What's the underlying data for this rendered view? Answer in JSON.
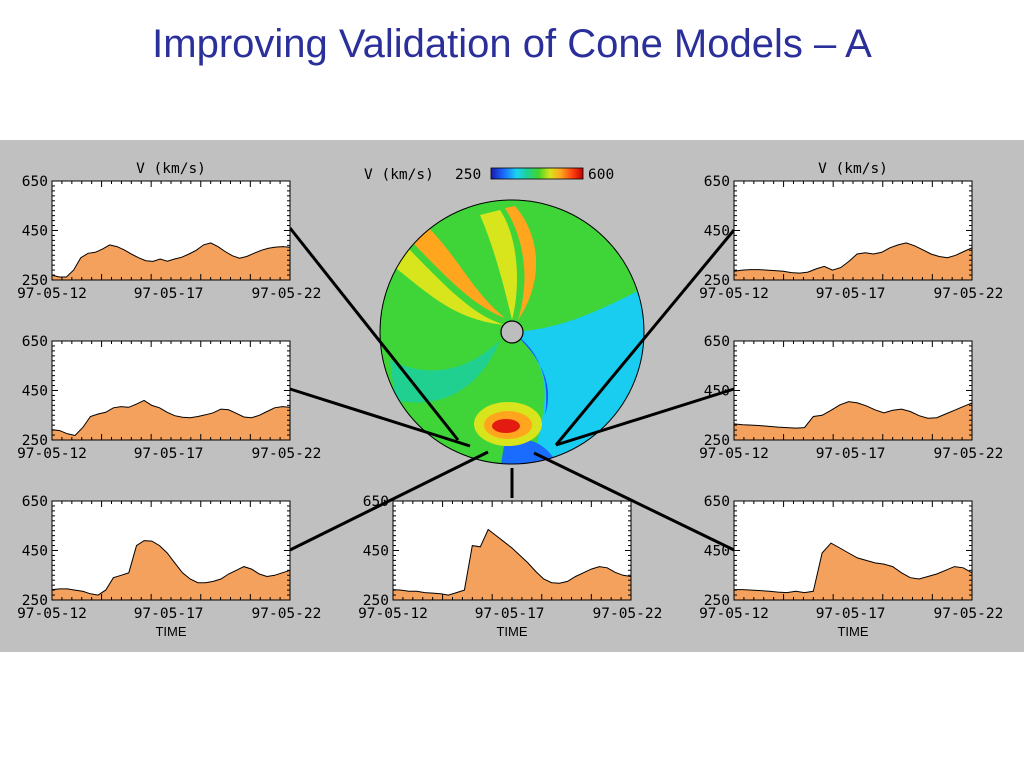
{
  "slide_title": "Improving Validation of Cone Models – A",
  "colors": {
    "title": "#2b2f9a",
    "fill": "#f4a15d",
    "panel_bg": "#c0c0c0"
  },
  "colorbar": {
    "label": "V (km/s)",
    "min": "250",
    "max": "600"
  },
  "chart_data": [
    {
      "id": "top-left",
      "type": "area",
      "title": "V (km/s)",
      "xlabel": "",
      "yticks": [
        "650",
        "450",
        "250"
      ],
      "xticks": [
        "97-05-12",
        "97-05-17",
        "97-05-22"
      ],
      "ylim": [
        250,
        650
      ],
      "values": [
        270,
        262,
        262,
        290,
        340,
        358,
        362,
        375,
        392,
        385,
        372,
        355,
        340,
        328,
        325,
        335,
        326,
        335,
        342,
        355,
        370,
        392,
        400,
        385,
        365,
        348,
        338,
        345,
        358,
        370,
        378,
        383,
        385,
        382
      ]
    },
    {
      "id": "middle-left",
      "type": "area",
      "title": "",
      "xlabel": "",
      "yticks": [
        "650",
        "450",
        "250"
      ],
      "xticks": [
        "97-05-12",
        "97-05-17",
        "97-05-22"
      ],
      "ylim": [
        250,
        650
      ],
      "values": [
        292,
        288,
        275,
        268,
        300,
        345,
        355,
        362,
        380,
        385,
        382,
        395,
        410,
        390,
        380,
        362,
        348,
        342,
        340,
        345,
        352,
        360,
        375,
        372,
        358,
        343,
        340,
        350,
        365,
        380,
        385,
        382
      ]
    },
    {
      "id": "bottom-left",
      "type": "area",
      "title": "",
      "xlabel": "TIME",
      "yticks": [
        "650",
        "450",
        "250"
      ],
      "xticks": [
        "97-05-12",
        "97-05-17",
        "97-05-22"
      ],
      "ylim": [
        250,
        650
      ],
      "values": [
        292,
        295,
        295,
        290,
        285,
        275,
        270,
        290,
        340,
        350,
        360,
        470,
        490,
        488,
        470,
        440,
        400,
        360,
        335,
        320,
        320,
        325,
        335,
        355,
        370,
        385,
        375,
        355,
        345,
        350,
        360,
        370
      ]
    },
    {
      "id": "bottom-center",
      "type": "area",
      "title": "",
      "xlabel": "TIME",
      "yticks": [
        "650",
        "450",
        "250"
      ],
      "xticks": [
        "97-05-12",
        "97-05-17",
        "97-05-22"
      ],
      "ylim": [
        250,
        650
      ],
      "values": [
        292,
        290,
        285,
        285,
        280,
        278,
        275,
        270,
        280,
        290,
        470,
        465,
        535,
        510,
        485,
        460,
        430,
        400,
        365,
        335,
        320,
        318,
        325,
        345,
        360,
        375,
        385,
        380,
        362,
        350,
        345
      ]
    },
    {
      "id": "top-right",
      "type": "area",
      "title": "V (km/s)",
      "xlabel": "",
      "yticks": [
        "650",
        "450",
        "250"
      ],
      "xticks": [
        "97-05-12",
        "97-05-17",
        "97-05-22"
      ],
      "ylim": [
        250,
        650
      ],
      "values": [
        285,
        290,
        292,
        292,
        290,
        288,
        285,
        280,
        278,
        282,
        295,
        305,
        290,
        300,
        325,
        355,
        360,
        355,
        362,
        380,
        392,
        400,
        388,
        372,
        355,
        345,
        340,
        350,
        365,
        380
      ]
    },
    {
      "id": "middle-right",
      "type": "area",
      "title": "",
      "xlabel": "",
      "yticks": [
        "650",
        "450",
        "250"
      ],
      "xticks": [
        "97-05-12",
        "97-05-17",
        "97-05-22"
      ],
      "ylim": [
        250,
        650
      ],
      "values": [
        315,
        312,
        310,
        308,
        305,
        302,
        300,
        298,
        300,
        345,
        350,
        370,
        392,
        405,
        400,
        388,
        372,
        360,
        370,
        375,
        365,
        348,
        338,
        340,
        355,
        370,
        385,
        400
      ]
    },
    {
      "id": "bottom-right",
      "type": "area",
      "title": "",
      "xlabel": "TIME",
      "yticks": [
        "650",
        "450",
        "250"
      ],
      "xticks": [
        "97-05-12",
        "97-05-17",
        "97-05-22"
      ],
      "ylim": [
        250,
        650
      ],
      "values": [
        292,
        292,
        290,
        288,
        285,
        282,
        280,
        285,
        280,
        285,
        440,
        480,
        460,
        440,
        420,
        410,
        400,
        395,
        385,
        360,
        340,
        335,
        345,
        355,
        370,
        385,
        380,
        360
      ]
    }
  ]
}
